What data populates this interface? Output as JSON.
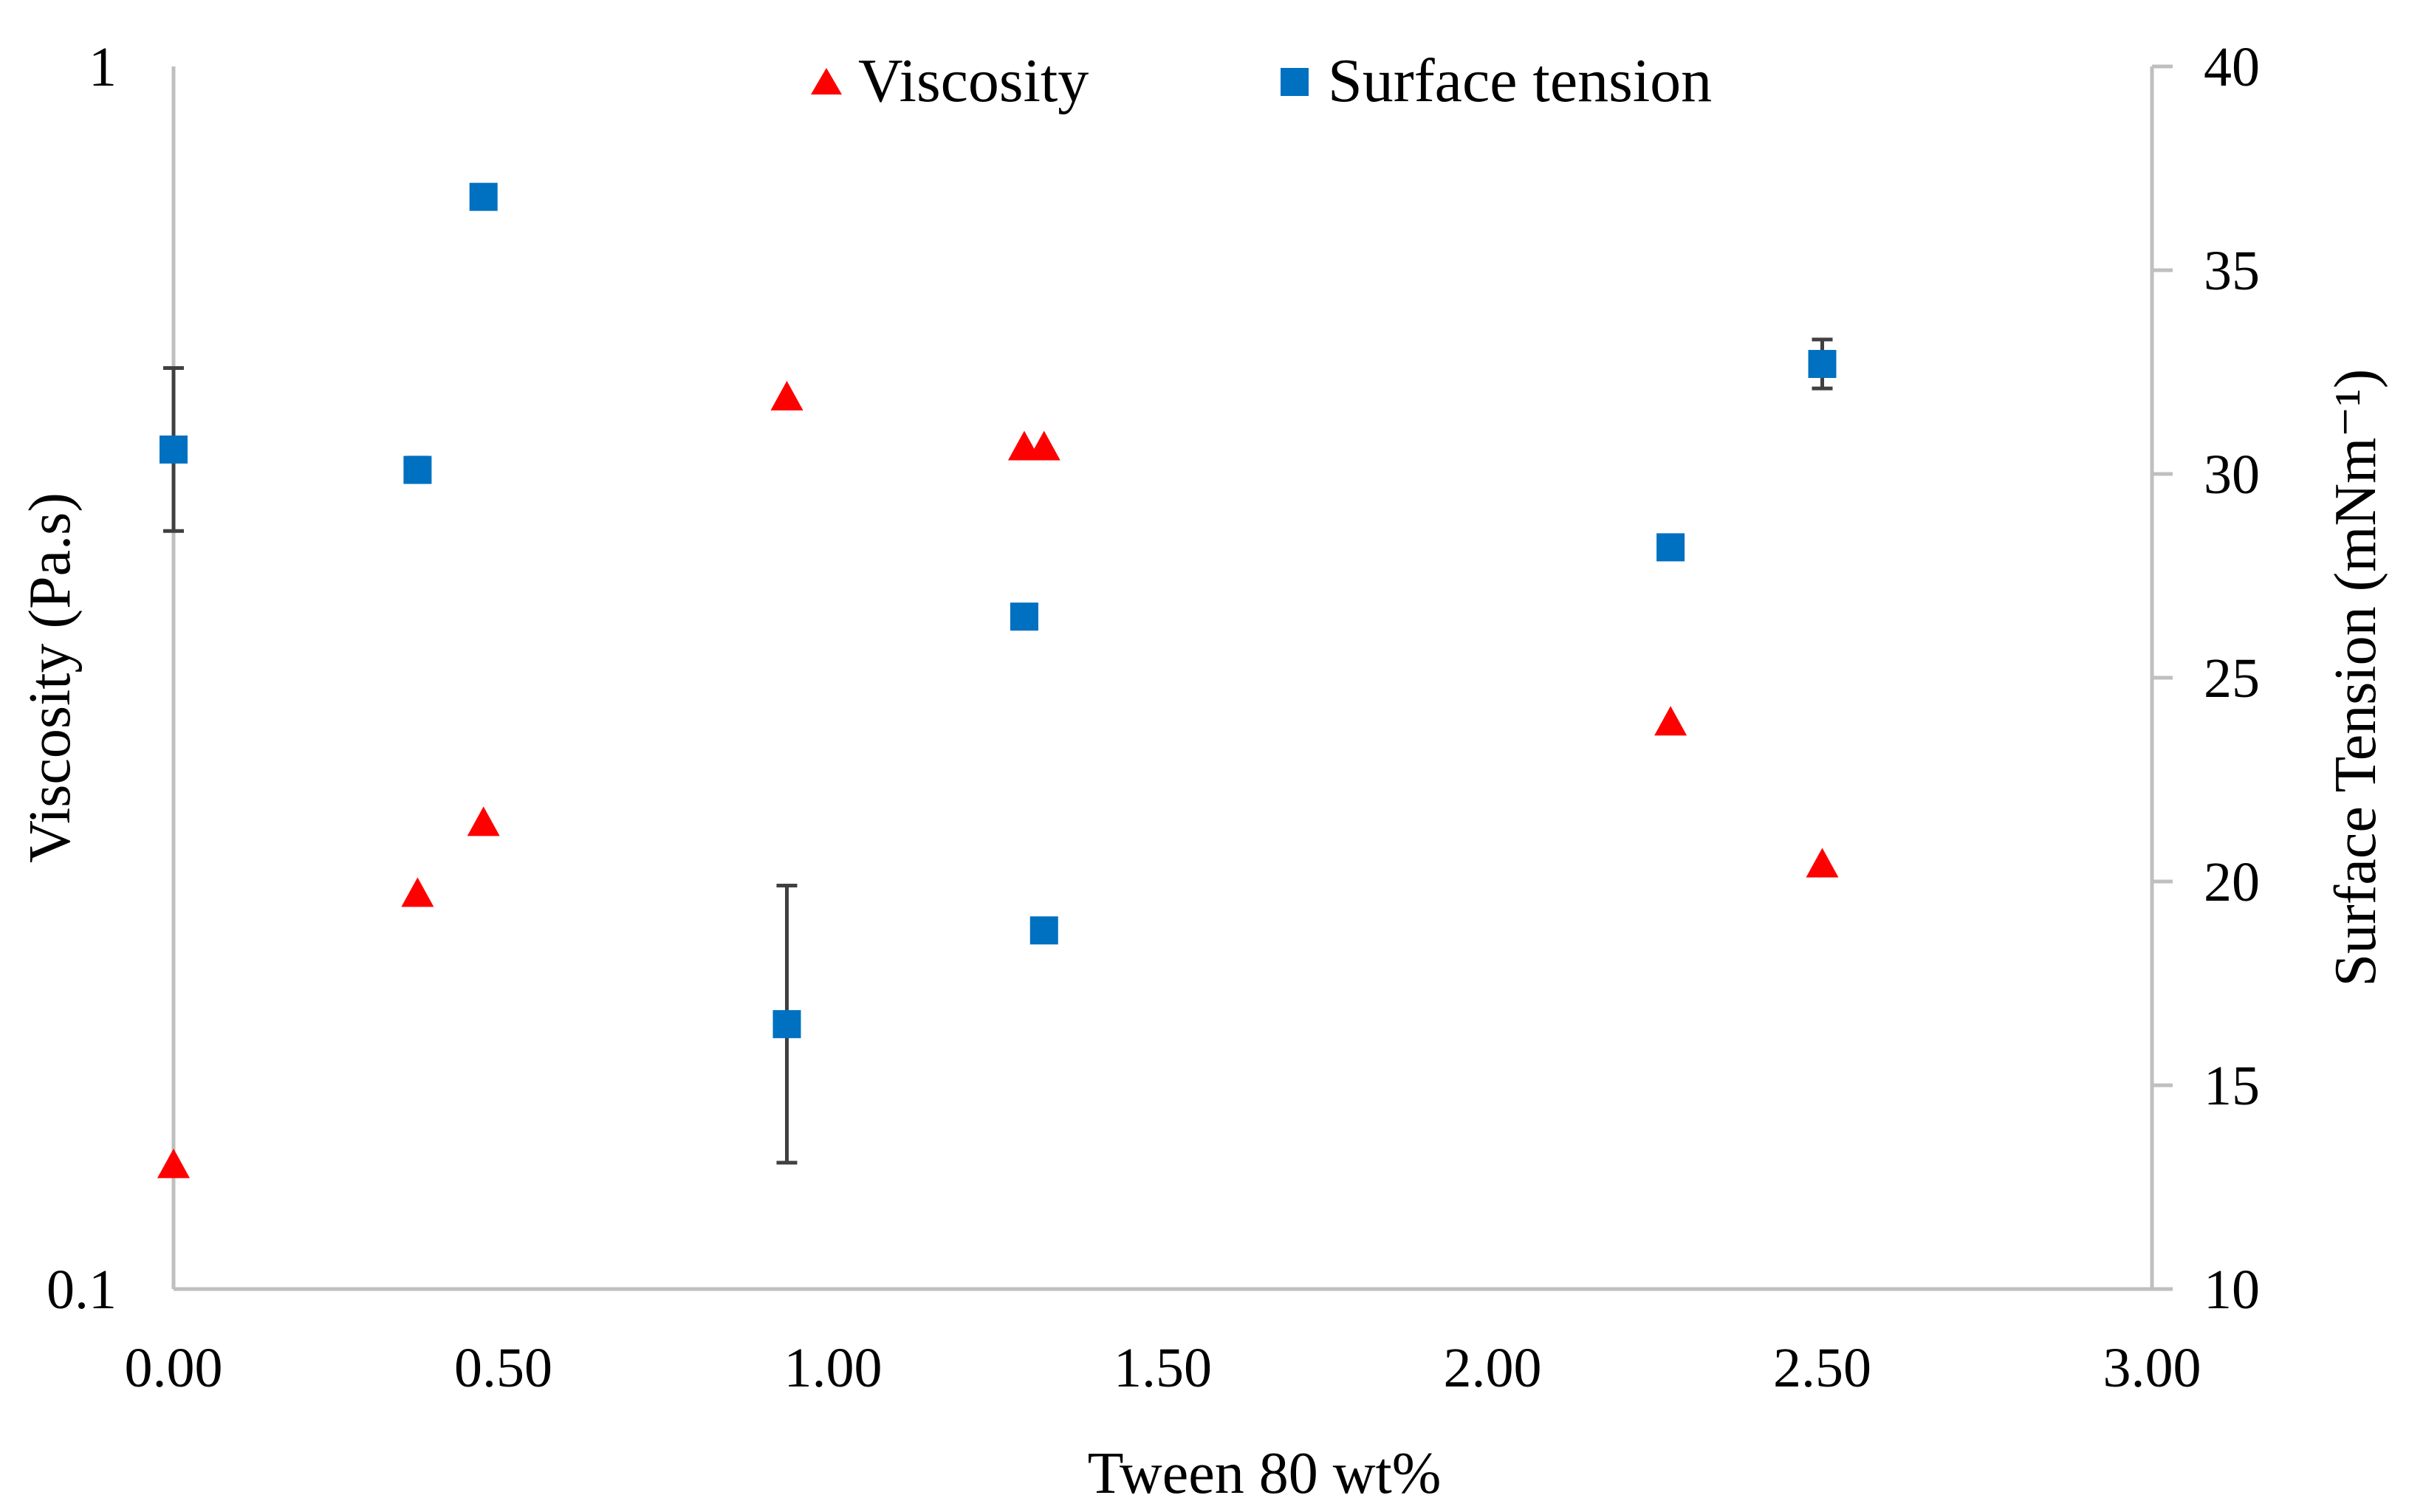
{
  "chart_data": {
    "type": "scatter",
    "xlabel": "Tween 80 wt%",
    "ylabel": "Viscosity (Pa.s)",
    "y2label": "Surface Tension (mNm⁻¹)",
    "xlim": [
      0,
      3
    ],
    "ylim": [
      0.1,
      1
    ],
    "yscale": "log",
    "y2lim": [
      10,
      40
    ],
    "grid": false,
    "legend_position": "top-center",
    "x_ticks": [
      "0.00",
      "0.50",
      "1.00",
      "1.50",
      "2.00",
      "2.50",
      "3.00"
    ],
    "y_ticks": [
      "0.1",
      "1"
    ],
    "y2_ticks": [
      "10",
      "15",
      "20",
      "25",
      "30",
      "35",
      "40"
    ],
    "series": [
      {
        "name": "Viscosity",
        "axis": "left",
        "marker": "triangle",
        "color": "#ff0000",
        "points": [
          {
            "x": 0.0,
            "y": 0.126
          },
          {
            "x": 0.37,
            "y": 0.21
          },
          {
            "x": 0.47,
            "y": 0.24
          },
          {
            "x": 0.93,
            "y": 0.535
          },
          {
            "x": 1.29,
            "y": 0.487
          },
          {
            "x": 1.32,
            "y": 0.487
          },
          {
            "x": 2.27,
            "y": 0.29
          },
          {
            "x": 2.5,
            "y": 0.222
          }
        ]
      },
      {
        "name": "Surface tension",
        "axis": "right",
        "marker": "square",
        "color": "#0070c0",
        "error_color": "#404040",
        "points": [
          {
            "x": 0.0,
            "y": 30.6,
            "err": 2.0
          },
          {
            "x": 0.37,
            "y": 30.1,
            "err": 0.3
          },
          {
            "x": 0.47,
            "y": 36.8,
            "err": 0
          },
          {
            "x": 0.93,
            "y": 16.5,
            "err": 3.4
          },
          {
            "x": 1.29,
            "y": 26.5,
            "err": 0
          },
          {
            "x": 1.32,
            "y": 18.8,
            "err": 0
          },
          {
            "x": 2.27,
            "y": 28.2,
            "err": 0
          },
          {
            "x": 2.5,
            "y": 32.7,
            "err": 0.6
          }
        ]
      }
    ]
  }
}
